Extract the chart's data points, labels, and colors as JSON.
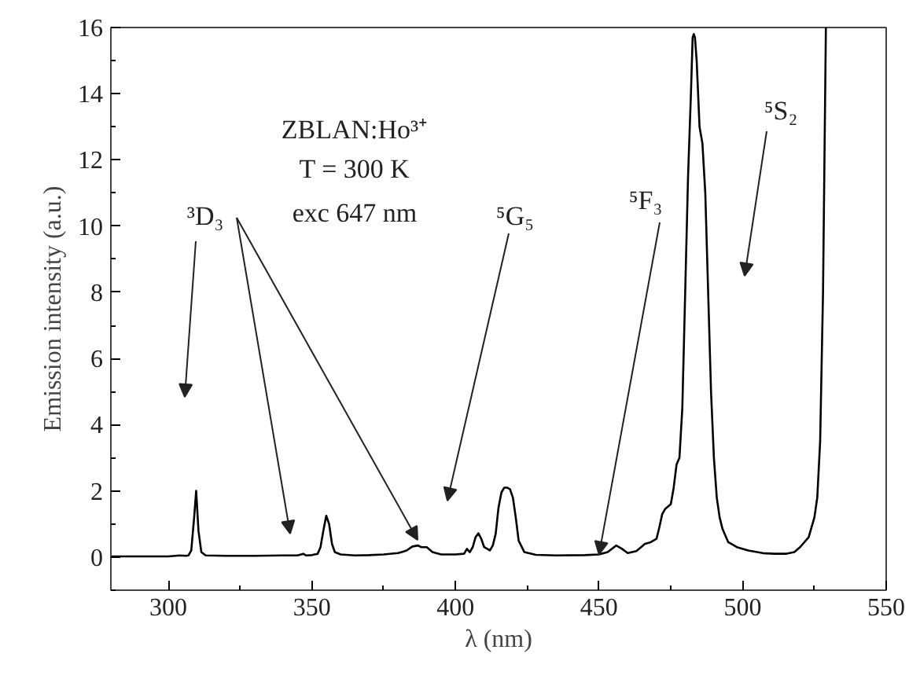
{
  "chart_data": {
    "type": "line",
    "xlabel": "λ (nm)",
    "ylabel": "Emission intensity (a.u.)",
    "xlim": [
      280,
      550
    ],
    "xticks": [
      300,
      350,
      400,
      450,
      500,
      550
    ],
    "ylim": [
      -1,
      16
    ],
    "yticks": [
      0,
      2,
      4,
      6,
      8,
      10,
      12,
      14,
      16
    ],
    "grid": false,
    "marker": "none",
    "line_style": "solid",
    "series": [
      {
        "color": "#000000",
        "x": [
          280,
          290,
          300,
          304,
          306,
          307,
          308,
          309,
          309.7,
          310.5,
          311.5,
          313,
          320,
          330,
          340,
          345,
          347,
          348,
          350,
          352,
          353,
          354,
          355,
          356,
          357,
          358,
          360,
          365,
          370,
          375,
          380,
          383,
          385,
          387,
          388,
          390,
          392,
          395,
          400,
          403,
          404,
          405,
          406,
          407,
          408,
          409,
          410,
          412,
          413,
          414,
          415,
          416,
          417,
          418,
          419,
          420,
          421,
          422,
          424,
          428,
          435,
          445,
          450,
          453,
          456,
          458,
          460,
          463,
          466,
          468,
          470,
          471,
          472,
          473,
          475,
          476,
          477,
          478,
          479,
          480,
          481,
          482,
          482.6,
          483,
          483.4,
          484,
          485,
          486,
          487,
          488,
          489,
          490,
          491,
          492,
          493,
          495,
          498,
          502,
          507,
          511,
          515,
          518,
          520,
          523,
          525,
          526,
          527,
          528,
          529
        ],
        "values": [
          0.02,
          0.02,
          0.02,
          0.05,
          0.04,
          0.05,
          0.2,
          1.2,
          2.0,
          0.8,
          0.15,
          0.05,
          0.04,
          0.04,
          0.05,
          0.05,
          0.1,
          0.05,
          0.06,
          0.1,
          0.3,
          0.8,
          1.25,
          1.0,
          0.4,
          0.15,
          0.08,
          0.05,
          0.06,
          0.08,
          0.12,
          0.2,
          0.32,
          0.35,
          0.3,
          0.3,
          0.15,
          0.08,
          0.08,
          0.1,
          0.25,
          0.15,
          0.3,
          0.6,
          0.72,
          0.55,
          0.3,
          0.2,
          0.35,
          0.7,
          1.5,
          1.95,
          2.1,
          2.1,
          2.05,
          1.8,
          1.2,
          0.5,
          0.15,
          0.07,
          0.05,
          0.06,
          0.08,
          0.15,
          0.35,
          0.25,
          0.12,
          0.18,
          0.4,
          0.45,
          0.55,
          0.9,
          1.3,
          1.45,
          1.6,
          2.1,
          2.8,
          3.0,
          4.5,
          8,
          11.5,
          14,
          15.7,
          15.8,
          15.7,
          15,
          13,
          12.5,
          11,
          8,
          5,
          3,
          1.8,
          1.2,
          0.85,
          0.45,
          0.3,
          0.2,
          0.12,
          0.1,
          0.1,
          0.15,
          0.3,
          0.6,
          1.2,
          1.8,
          3.5,
          8,
          16
        ]
      }
    ],
    "annotations": [
      "ZBLAN:Ho³⁺",
      "T = 300 K",
      "exc 647 nm",
      "³D₃",
      "⁵G₅",
      {
        "text": "⁵F₃",
        "x": 450,
        "y": 0.08
      },
      "⁵S₂"
    ]
  }
}
